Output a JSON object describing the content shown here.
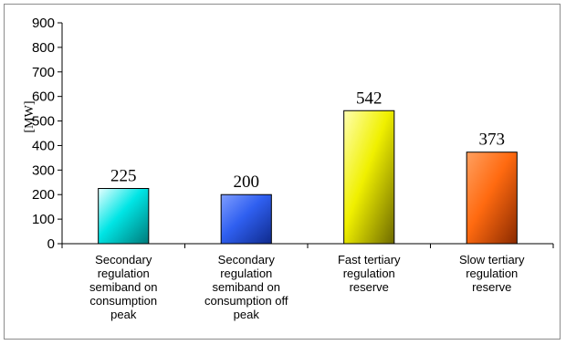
{
  "chart_data": {
    "type": "bar",
    "categories": [
      "Secondary regulation semiband on consumption peak",
      "Secondary regulation semiband on consumption off peak",
      "Fast tertiary regulation reserve",
      "Slow tertiary regulation reserve"
    ],
    "category_lines": [
      [
        "Secondary",
        "regulation",
        "semiband on",
        "consumption",
        "peak"
      ],
      [
        "Secondary",
        "regulation",
        "semiband on",
        "consumption off",
        "peak"
      ],
      [
        "Fast tertiary",
        "regulation",
        "reserve"
      ],
      [
        "Slow tertiary",
        "regulation",
        "reserve"
      ]
    ],
    "values": [
      225,
      200,
      542,
      373
    ],
    "ylabel": "[MW]",
    "ylim": [
      0,
      900
    ],
    "ytick_step": 100,
    "grid": false,
    "legend": "none",
    "bar_colors": [
      {
        "light": "#e6ffff",
        "mid": "#00e5e5",
        "dark": "#007a7a"
      },
      {
        "light": "#7f9dff",
        "mid": "#2f5ff0",
        "dark": "#0f2a8c"
      },
      {
        "light": "#ffffb0",
        "mid": "#f0f000",
        "dark": "#6e6a00"
      },
      {
        "light": "#ffa060",
        "mid": "#ff6a10",
        "dark": "#8a2a00"
      }
    ]
  }
}
